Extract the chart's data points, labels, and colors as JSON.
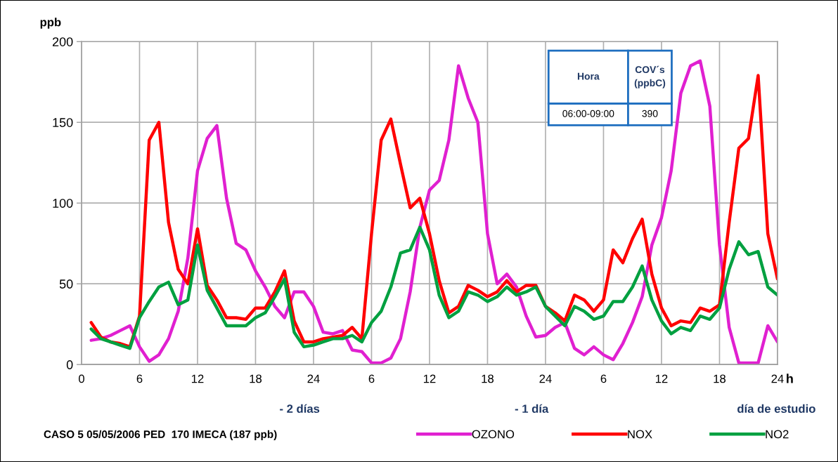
{
  "chart_data": {
    "type": "line",
    "ylabel": "ppb",
    "xlabel": "h",
    "x": [
      "2006-05-03T01:00",
      "2006-05-03T02:00",
      "2006-05-03T03:00",
      "2006-05-03T04:00",
      "2006-05-03T05:00",
      "2006-05-03T06:00",
      "2006-05-03T07:00",
      "2006-05-03T08:00",
      "2006-05-03T09:00",
      "2006-05-03T10:00",
      "2006-05-03T11:00",
      "2006-05-03T12:00",
      "2006-05-03T13:00",
      "2006-05-03T14:00",
      "2006-05-03T15:00",
      "2006-05-03T16:00",
      "2006-05-03T17:00",
      "2006-05-03T18:00",
      "2006-05-03T19:00",
      "2006-05-03T20:00",
      "2006-05-03T21:00",
      "2006-05-03T22:00",
      "2006-05-03T23:00",
      "2006-05-04T00:00",
      "2006-05-04T01:00",
      "2006-05-04T02:00",
      "2006-05-04T03:00",
      "2006-05-04T04:00",
      "2006-05-04T05:00",
      "2006-05-04T06:00",
      "2006-05-04T07:00",
      "2006-05-04T08:00",
      "2006-05-04T09:00",
      "2006-05-04T10:00",
      "2006-05-04T11:00",
      "2006-05-04T12:00",
      "2006-05-04T13:00",
      "2006-05-04T14:00",
      "2006-05-04T15:00",
      "2006-05-04T16:00",
      "2006-05-04T17:00",
      "2006-05-04T18:00",
      "2006-05-04T19:00",
      "2006-05-04T20:00",
      "2006-05-04T21:00",
      "2006-05-04T22:00",
      "2006-05-04T23:00",
      "2006-05-05T00:00",
      "2006-05-05T01:00",
      "2006-05-05T02:00",
      "2006-05-05T03:00",
      "2006-05-05T04:00",
      "2006-05-05T05:00",
      "2006-05-05T06:00",
      "2006-05-05T07:00",
      "2006-05-05T08:00",
      "2006-05-05T09:00",
      "2006-05-05T10:00",
      "2006-05-05T11:00",
      "2006-05-05T12:00",
      "2006-05-05T13:00",
      "2006-05-05T14:00",
      "2006-05-05T15:00",
      "2006-05-05T16:00",
      "2006-05-05T17:00",
      "2006-05-05T18:00",
      "2006-05-05T19:00",
      "2006-05-05T20:00",
      "2006-05-05T21:00",
      "2006-05-05T22:00",
      "2006-05-05T23:00",
      "2006-05-06T00:00"
    ],
    "series": [
      {
        "name": "OZONO",
        "color": "#e020d0",
        "values": [
          15,
          16,
          18,
          21,
          24,
          11,
          2,
          6,
          16,
          33,
          66,
          120,
          140,
          148,
          103,
          75,
          71,
          58,
          48,
          36,
          29,
          45,
          45,
          36,
          20,
          19,
          21,
          9,
          8,
          1,
          1,
          4,
          16,
          45,
          85,
          108,
          114,
          139,
          185,
          165,
          150,
          81,
          50,
          56,
          48,
          30,
          17,
          18,
          23,
          26,
          10,
          6,
          11,
          6,
          3,
          13,
          26,
          42,
          74,
          91,
          120,
          168,
          185,
          188,
          160,
          74,
          23,
          1,
          1,
          1,
          24,
          14
        ]
      },
      {
        "name": "NOX",
        "color": "#ff0000",
        "values": [
          26,
          17,
          14,
          13,
          11,
          30,
          139,
          150,
          88,
          59,
          50,
          84,
          49,
          40,
          29,
          29,
          28,
          35,
          35,
          45,
          58,
          27,
          14,
          14,
          16,
          17,
          18,
          23,
          16,
          81,
          139,
          152,
          124,
          97,
          103,
          81,
          52,
          32,
          36,
          49,
          46,
          42,
          45,
          52,
          45,
          49,
          49,
          36,
          32,
          27,
          43,
          40,
          33,
          40,
          71,
          63,
          78,
          90,
          56,
          35,
          24,
          27,
          26,
          35,
          33,
          37,
          88,
          134,
          140,
          179,
          81,
          53
        ]
      },
      {
        "name": "NO2",
        "color": "#00a040",
        "values": [
          22,
          16,
          14,
          12,
          10,
          29,
          39,
          48,
          51,
          37,
          40,
          74,
          46,
          35,
          24,
          24,
          24,
          29,
          32,
          42,
          53,
          20,
          11,
          12,
          14,
          16,
          16,
          18,
          14,
          26,
          33,
          48,
          69,
          71,
          85,
          71,
          43,
          29,
          33,
          45,
          43,
          39,
          42,
          48,
          43,
          45,
          48,
          36,
          30,
          24,
          36,
          33,
          28,
          30,
          39,
          39,
          48,
          61,
          40,
          27,
          19,
          23,
          21,
          30,
          28,
          35,
          59,
          76,
          68,
          70,
          48,
          43
        ]
      }
    ],
    "xlim": [
      "2006-05-03T00:00",
      "2006-05-06T00:00"
    ],
    "xticks": [
      {
        "value": "2006-05-03T00:00",
        "label": "0"
      },
      {
        "value": "2006-05-03T06:00",
        "label": "6"
      },
      {
        "value": "2006-05-03T12:00",
        "label": "12"
      },
      {
        "value": "2006-05-03T18:00",
        "label": "18"
      },
      {
        "value": "2006-05-04T00:00",
        "label": "24"
      },
      {
        "value": "2006-05-04T06:00",
        "label": "6"
      },
      {
        "value": "2006-05-04T12:00",
        "label": "12"
      },
      {
        "value": "2006-05-04T18:00",
        "label": "18"
      },
      {
        "value": "2006-05-05T00:00",
        "label": "24"
      },
      {
        "value": "2006-05-05T06:00",
        "label": "6"
      },
      {
        "value": "2006-05-05T12:00",
        "label": "12"
      },
      {
        "value": "2006-05-05T18:00",
        "label": "18"
      },
      {
        "value": "2006-05-06T00:00",
        "label": "24"
      }
    ],
    "ylim": [
      0,
      200
    ],
    "yticks": [
      0,
      50,
      100,
      150,
      200
    ],
    "grid": true,
    "legend": "bottom",
    "marker": "none",
    "line_style": "solid",
    "annotations": [
      "- 2 días",
      "- 1 día",
      "día de estudio",
      "CASO 5 05/05/2006 PED  170 IMECA (187 ppb)",
      "Hora",
      "COV´s (ppbC)",
      "06:00-09:00",
      "390"
    ]
  }
}
